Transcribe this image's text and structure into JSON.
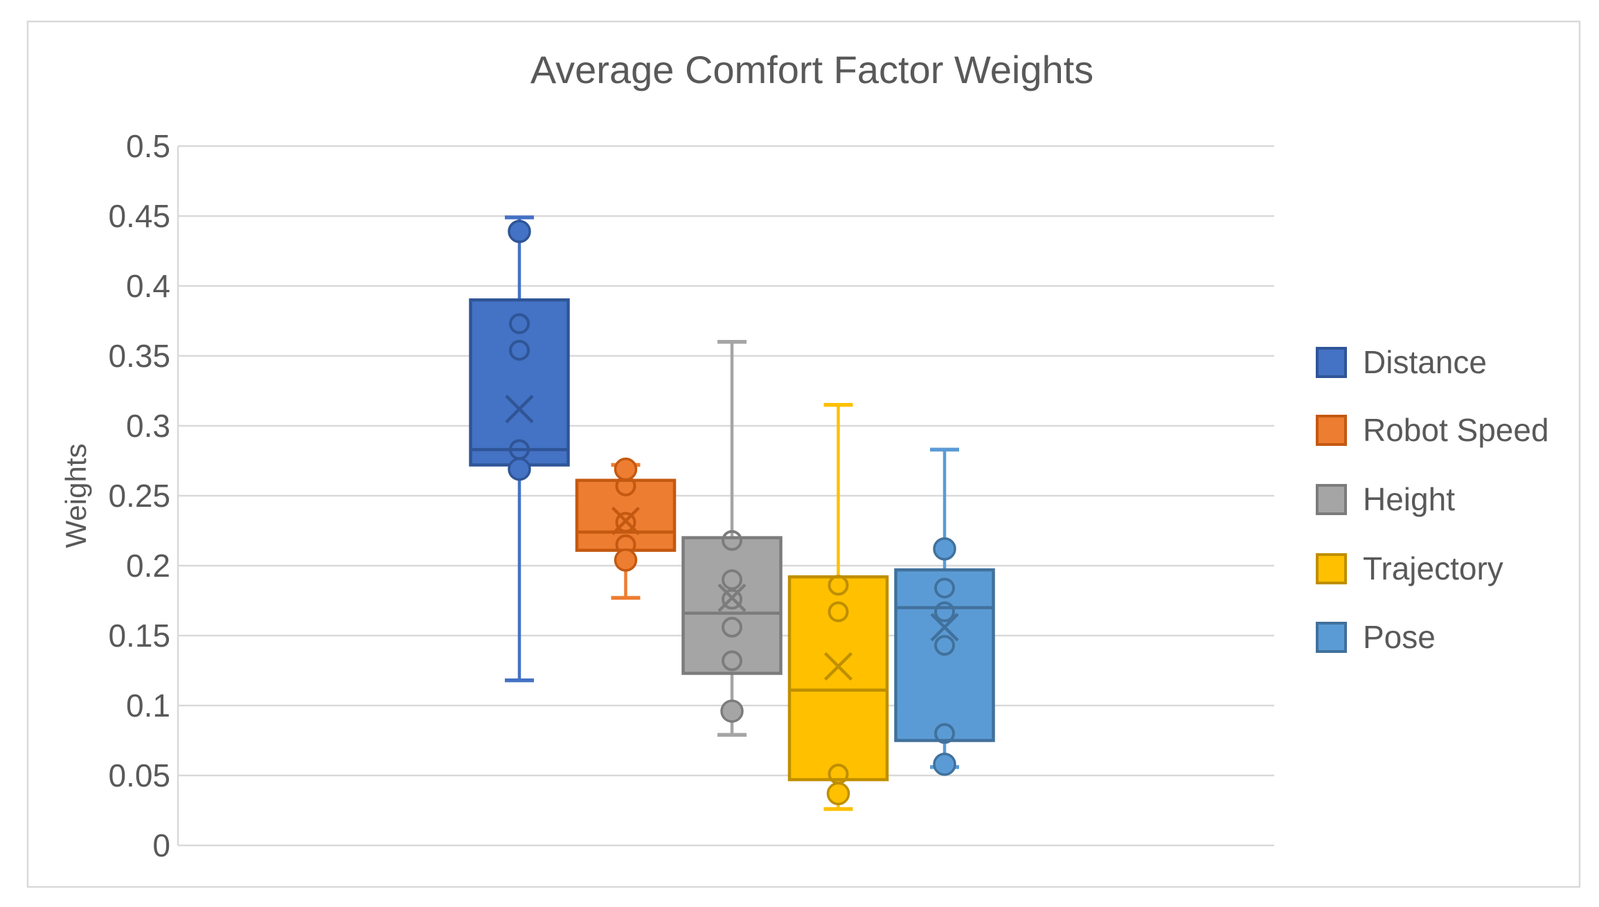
{
  "title": "Average Comfort Factor Weights",
  "y_axis": {
    "title": "Weights",
    "tick_labels": [
      "0",
      "0.05",
      "0.1",
      "0.15",
      "0.2",
      "0.25",
      "0.3",
      "0.35",
      "0.4",
      "0.45",
      "0.5"
    ],
    "tick_values": [
      0,
      0.05,
      0.1,
      0.15,
      0.2,
      0.25,
      0.3,
      0.35,
      0.4,
      0.45,
      0.5
    ]
  },
  "legend": {
    "position": "right",
    "items": [
      {
        "label": "Distance",
        "color": "#4472C4",
        "border": "#2F5597"
      },
      {
        "label": "Robot Speed",
        "color": "#ED7D31",
        "border": "#C45911"
      },
      {
        "label": "Height",
        "color": "#A5A5A5",
        "border": "#7C7C7C"
      },
      {
        "label": "Trajectory",
        "color": "#FFC000",
        "border": "#BF8F00"
      },
      {
        "label": "Pose",
        "color": "#5B9BD5",
        "border": "#41719C"
      }
    ]
  },
  "colors": {
    "text": "#595959",
    "gridline": "#D9D9D9",
    "chart_border": "#D9D9D9",
    "background": "#FFFFFF"
  },
  "chart_data": {
    "type": "boxplot",
    "title": "Average Comfort Factor Weights",
    "xlabel": "",
    "ylabel": "Weights",
    "ylim": [
      0,
      0.5
    ],
    "ytick_step": 0.05,
    "grid": true,
    "legend_position": "right",
    "categories": [
      "Distance",
      "Robot Speed",
      "Height",
      "Trajectory",
      "Pose"
    ],
    "series": [
      {
        "name": "Distance",
        "fill": "#4472C4",
        "stroke": "#2F5597",
        "whisker_low": 0.118,
        "q1": 0.272,
        "median": 0.283,
        "q3": 0.39,
        "whisker_high": 0.449,
        "mean": 0.312,
        "inner_points": [
          0.373,
          0.354,
          0.283
        ],
        "outlier_points": [
          0.439,
          0.269
        ]
      },
      {
        "name": "Robot Speed",
        "fill": "#ED7D31",
        "stroke": "#C45911",
        "whisker_low": 0.177,
        "q1": 0.211,
        "median": 0.224,
        "q3": 0.261,
        "whisker_high": 0.272,
        "mean": 0.232,
        "inner_points": [
          0.257,
          0.231,
          0.215
        ],
        "outlier_points": [
          0.269,
          0.204
        ]
      },
      {
        "name": "Height",
        "fill": "#A5A5A5",
        "stroke": "#7C7C7C",
        "whisker_low": 0.079,
        "q1": 0.123,
        "median": 0.166,
        "q3": 0.22,
        "whisker_high": 0.36,
        "mean": 0.177,
        "inner_points": [
          0.218,
          0.19,
          0.176,
          0.156,
          0.132
        ],
        "outlier_points": [
          0.096
        ]
      },
      {
        "name": "Trajectory",
        "fill": "#FFC000",
        "stroke": "#BF8F00",
        "whisker_low": 0.026,
        "q1": 0.047,
        "median": 0.111,
        "q3": 0.192,
        "whisker_high": 0.315,
        "mean": 0.128,
        "inner_points": [
          0.186,
          0.167,
          0.051
        ],
        "outlier_points": [
          0.037
        ]
      },
      {
        "name": "Pose",
        "fill": "#5B9BD5",
        "stroke": "#41719C",
        "whisker_low": 0.056,
        "q1": 0.075,
        "median": 0.17,
        "q3": 0.197,
        "whisker_high": 0.283,
        "mean": 0.156,
        "inner_points": [
          0.184,
          0.167,
          0.143,
          0.08
        ],
        "outlier_points": [
          0.212,
          0.058
        ]
      }
    ]
  }
}
